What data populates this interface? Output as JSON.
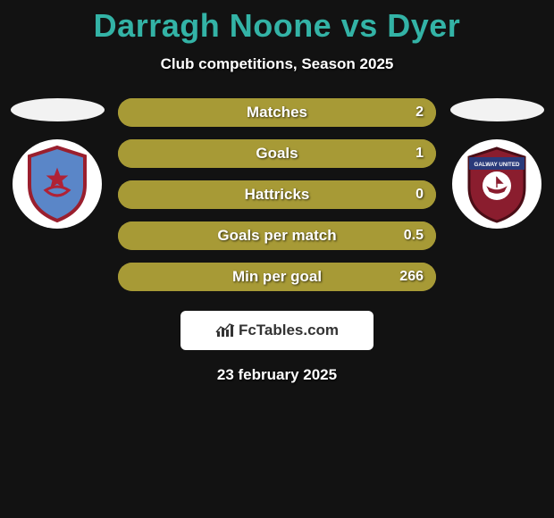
{
  "title": {
    "text": "Darragh Noone vs Dyer",
    "color": "#33b3a6",
    "fontsize": 36,
    "fontweight": 800
  },
  "subtitle": {
    "text": "Club competitions, Season 2025",
    "color": "#ffffff",
    "fontsize": 17
  },
  "background_color": "#121212",
  "left_player": {
    "ellipse_color": "#f2f2f2",
    "crest_bg": "#ffffff",
    "crest_shield_fill": "#5a86c8",
    "crest_shield_stroke": "#9a1f2e",
    "crest_symbol_color": "#b02235"
  },
  "right_player": {
    "ellipse_color": "#f2f2f2",
    "crest_bg": "#ffffff",
    "crest_shield_fill": "#8a1d2e",
    "crest_banner_fill": "#2a3a7a",
    "crest_text": "GALWAY UNITED"
  },
  "bars": {
    "track_color": "#a79a36",
    "fill_left_color": "#a79a36",
    "fill_right_color": "#a79a36",
    "label_color": "#ffffff",
    "value_color": "#ffffff",
    "height": 32,
    "border_radius": 16,
    "label_fontsize": 17,
    "value_fontsize": 16,
    "rows": [
      {
        "label": "Matches",
        "left_val": "",
        "right_val": "2",
        "left_pct": 0,
        "right_pct": 100
      },
      {
        "label": "Goals",
        "left_val": "",
        "right_val": "1",
        "left_pct": 0,
        "right_pct": 100
      },
      {
        "label": "Hattricks",
        "left_val": "",
        "right_val": "0",
        "left_pct": 0,
        "right_pct": 100
      },
      {
        "label": "Goals per match",
        "left_val": "",
        "right_val": "0.5",
        "left_pct": 0,
        "right_pct": 100
      },
      {
        "label": "Min per goal",
        "left_val": "",
        "right_val": "266",
        "left_pct": 0,
        "right_pct": 100
      }
    ]
  },
  "attribution": {
    "text": "FcTables.com",
    "box_bg": "#ffffff",
    "text_color": "#333333",
    "icon_color": "#333333"
  },
  "date": {
    "text": "23 february 2025",
    "color": "#ffffff",
    "fontsize": 17
  }
}
